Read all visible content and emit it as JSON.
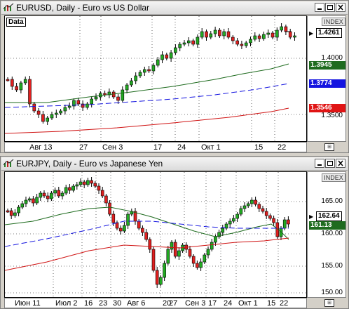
{
  "windows": [
    {
      "title": "EURUSD, Daily - Euro vs US Dollar",
      "panel_label": "Data",
      "index_label": "INDEX",
      "y_ticks": [
        "1.4000",
        "1.3500"
      ],
      "price_tags": [
        {
          "text": "1.4261",
          "color": "#ffffff"
        },
        {
          "text": "1.3945",
          "color": "#1e6b1e"
        },
        {
          "text": "1.3774",
          "color": "#1414e0"
        },
        {
          "text": "1.3546",
          "color": "#e01414"
        }
      ],
      "x_labels": [
        "Авг 13",
        "27",
        "Сен 3",
        "17",
        "24",
        "Окт 1",
        "15",
        "22"
      ]
    },
    {
      "title": "EURJPY, Daily - Euro vs Japanese Yen",
      "panel_label": "",
      "index_label": "INDEX",
      "y_ticks": [
        "165.00",
        "160.00",
        "155.00",
        "150.00"
      ],
      "price_tags": [
        {
          "text": "162.64",
          "color": "#ffffff"
        },
        {
          "text": "161.13",
          "color": "#1e6b1e"
        }
      ],
      "x_labels": [
        "Июн 11",
        "Июл 2",
        "16",
        "23",
        "30",
        "Авг 6",
        "20",
        "27",
        "Сен 3",
        "17",
        "24",
        "Окт 1",
        "15",
        "22"
      ]
    }
  ],
  "chart_data": [
    {
      "type": "candlestick",
      "title": "EURUSD, Daily - Euro vs US Dollar",
      "y_range": [
        1.335,
        1.435
      ],
      "x": [
        "Авг 13",
        "27",
        "Сен 3",
        "17",
        "24",
        "Окт 1",
        "15",
        "22"
      ],
      "ma_fast_last": 1.3945,
      "ma_mid_last": 1.3774,
      "ma_slow_last": 1.3546,
      "last_price": 1.4261
    },
    {
      "type": "candlestick",
      "title": "EURJPY, Daily - Euro vs Japanese Yen",
      "y_range": [
        149,
        168
      ],
      "x": [
        "Июн 11",
        "Июл 2",
        "16",
        "23",
        "30",
        "Авг 6",
        "20",
        "27",
        "Сен 3",
        "17",
        "24",
        "Окт 1",
        "15",
        "22"
      ],
      "ma_fast_last": 161.13,
      "last_price": 162.64
    }
  ]
}
